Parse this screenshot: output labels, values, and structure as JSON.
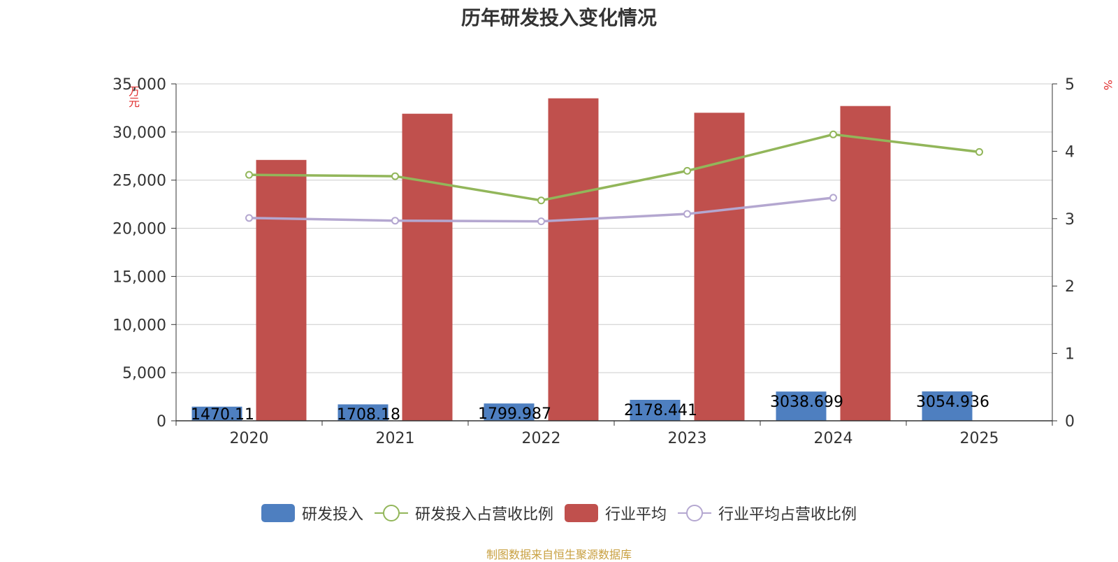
{
  "chart_data": {
    "type": "bar",
    "title": "历年研发投入变化情况",
    "categories": [
      "2020",
      "2021",
      "2022",
      "2023",
      "2024",
      "2025"
    ],
    "y_left": {
      "label": "万元",
      "min": 0,
      "max": 35000,
      "ticks": [
        0,
        5000,
        10000,
        15000,
        20000,
        25000,
        30000,
        35000
      ],
      "tick_labels": [
        "0",
        "5,000",
        "10,000",
        "15,000",
        "20,000",
        "25,000",
        "30,000",
        "35,000"
      ]
    },
    "y_right": {
      "label": "%",
      "min": 0,
      "max": 5,
      "ticks": [
        0,
        1,
        2,
        3,
        4,
        5
      ]
    },
    "grid": true,
    "legend_position": "bottom",
    "series": [
      {
        "name": "研发投入",
        "type": "bar",
        "axis": "left",
        "color": "#4e7fc0",
        "values": [
          1470.11,
          1708.18,
          1799.987,
          2178.441,
          3038.699,
          3054.936
        ],
        "labels": [
          "1470.11",
          "1708.18",
          "1799.987",
          "2178.441",
          "3038.699",
          "3054.936"
        ]
      },
      {
        "name": "研发投入占营收比例",
        "type": "line",
        "axis": "right",
        "color": "#92b65a",
        "values": [
          3.65,
          3.63,
          3.27,
          3.71,
          4.25,
          3.99
        ]
      },
      {
        "name": "行业平均",
        "type": "bar",
        "axis": "left",
        "color": "#c0504d",
        "values": [
          27100,
          31900,
          33500,
          32000,
          32700,
          null
        ]
      },
      {
        "name": "行业平均占营收比例",
        "type": "line",
        "axis": "right",
        "color": "#b4a7d0",
        "values": [
          3.01,
          2.97,
          2.96,
          3.07,
          3.31,
          null
        ]
      }
    ]
  },
  "source": "制图数据来自恒生聚源数据库"
}
